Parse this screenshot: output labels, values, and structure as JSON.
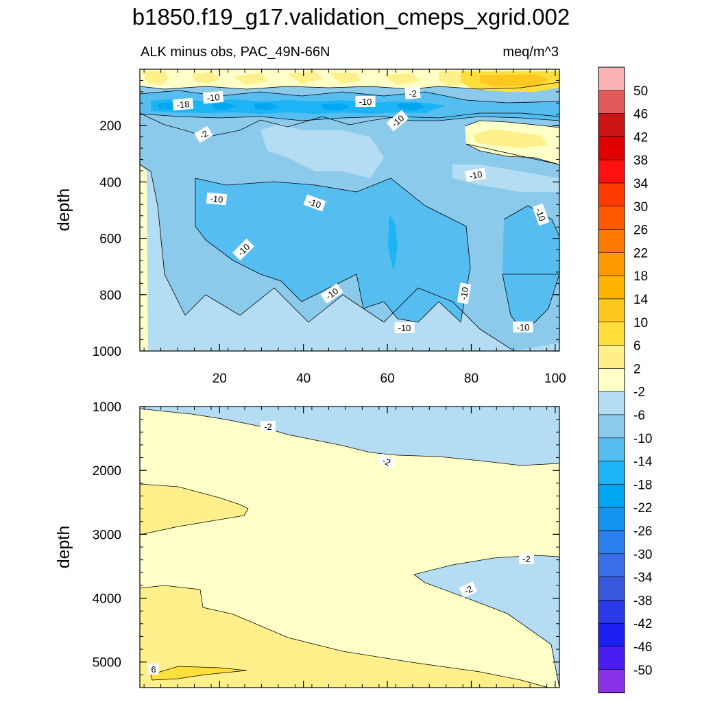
{
  "chart_data": {
    "type": "contour",
    "title": "b1850.f19_g17.validation_cmeps_xgrid.002",
    "subtitle_left": "ALK minus obs, PAC_49N-66N",
    "subtitle_right": "meq/m^3",
    "xlim": [
      1,
      101
    ],
    "x_ticks": [
      "20",
      "40",
      "60",
      "80",
      "100"
    ],
    "upper_panel": {
      "ylabel": "depth",
      "ylim": [
        0,
        1000
      ],
      "y_ticks": [
        "200",
        "400",
        "600",
        "800",
        "1000"
      ],
      "contour_labels": [
        "-10",
        "-18",
        "-2",
        "-10",
        "-10",
        "-2",
        "-10",
        "-10",
        "-10",
        "-10",
        "-10",
        "-10",
        "-10",
        "-10",
        "-10"
      ]
    },
    "lower_panel": {
      "ylabel": "depth",
      "ylim": [
        1000,
        5400
      ],
      "y_ticks": [
        "1000",
        "2000",
        "3000",
        "4000",
        "5000"
      ],
      "contour_labels": [
        "-2",
        "-2",
        "-2",
        "-2",
        "6"
      ]
    },
    "colorbar": {
      "labels": [
        "50",
        "46",
        "42",
        "38",
        "34",
        "30",
        "26",
        "22",
        "18",
        "14",
        "10",
        "6",
        "2",
        "-2",
        "-6",
        "-10",
        "-14",
        "-18",
        "-22",
        "-26",
        "-30",
        "-34",
        "-38",
        "-42",
        "-46",
        "-50"
      ],
      "colors": [
        "#fbb4b4",
        "#e35a5a",
        "#cc1212",
        "#e00000",
        "#ff1010",
        "#ff3a00",
        "#ff5a00",
        "#ff7a00",
        "#ff9a00",
        "#ffb400",
        "#ffc81e",
        "#ffdf3c",
        "#fff08c",
        "#ffffc8",
        "#b4dcf2",
        "#8ccaec",
        "#55bdf0",
        "#1cb4f5",
        "#00a6f2",
        "#1494f0",
        "#2a80ec",
        "#3a6ee8",
        "#3a58dc",
        "#2a3ae8",
        "#1a1ef0",
        "#4a1ef0",
        "#8a32ea"
      ]
    }
  }
}
